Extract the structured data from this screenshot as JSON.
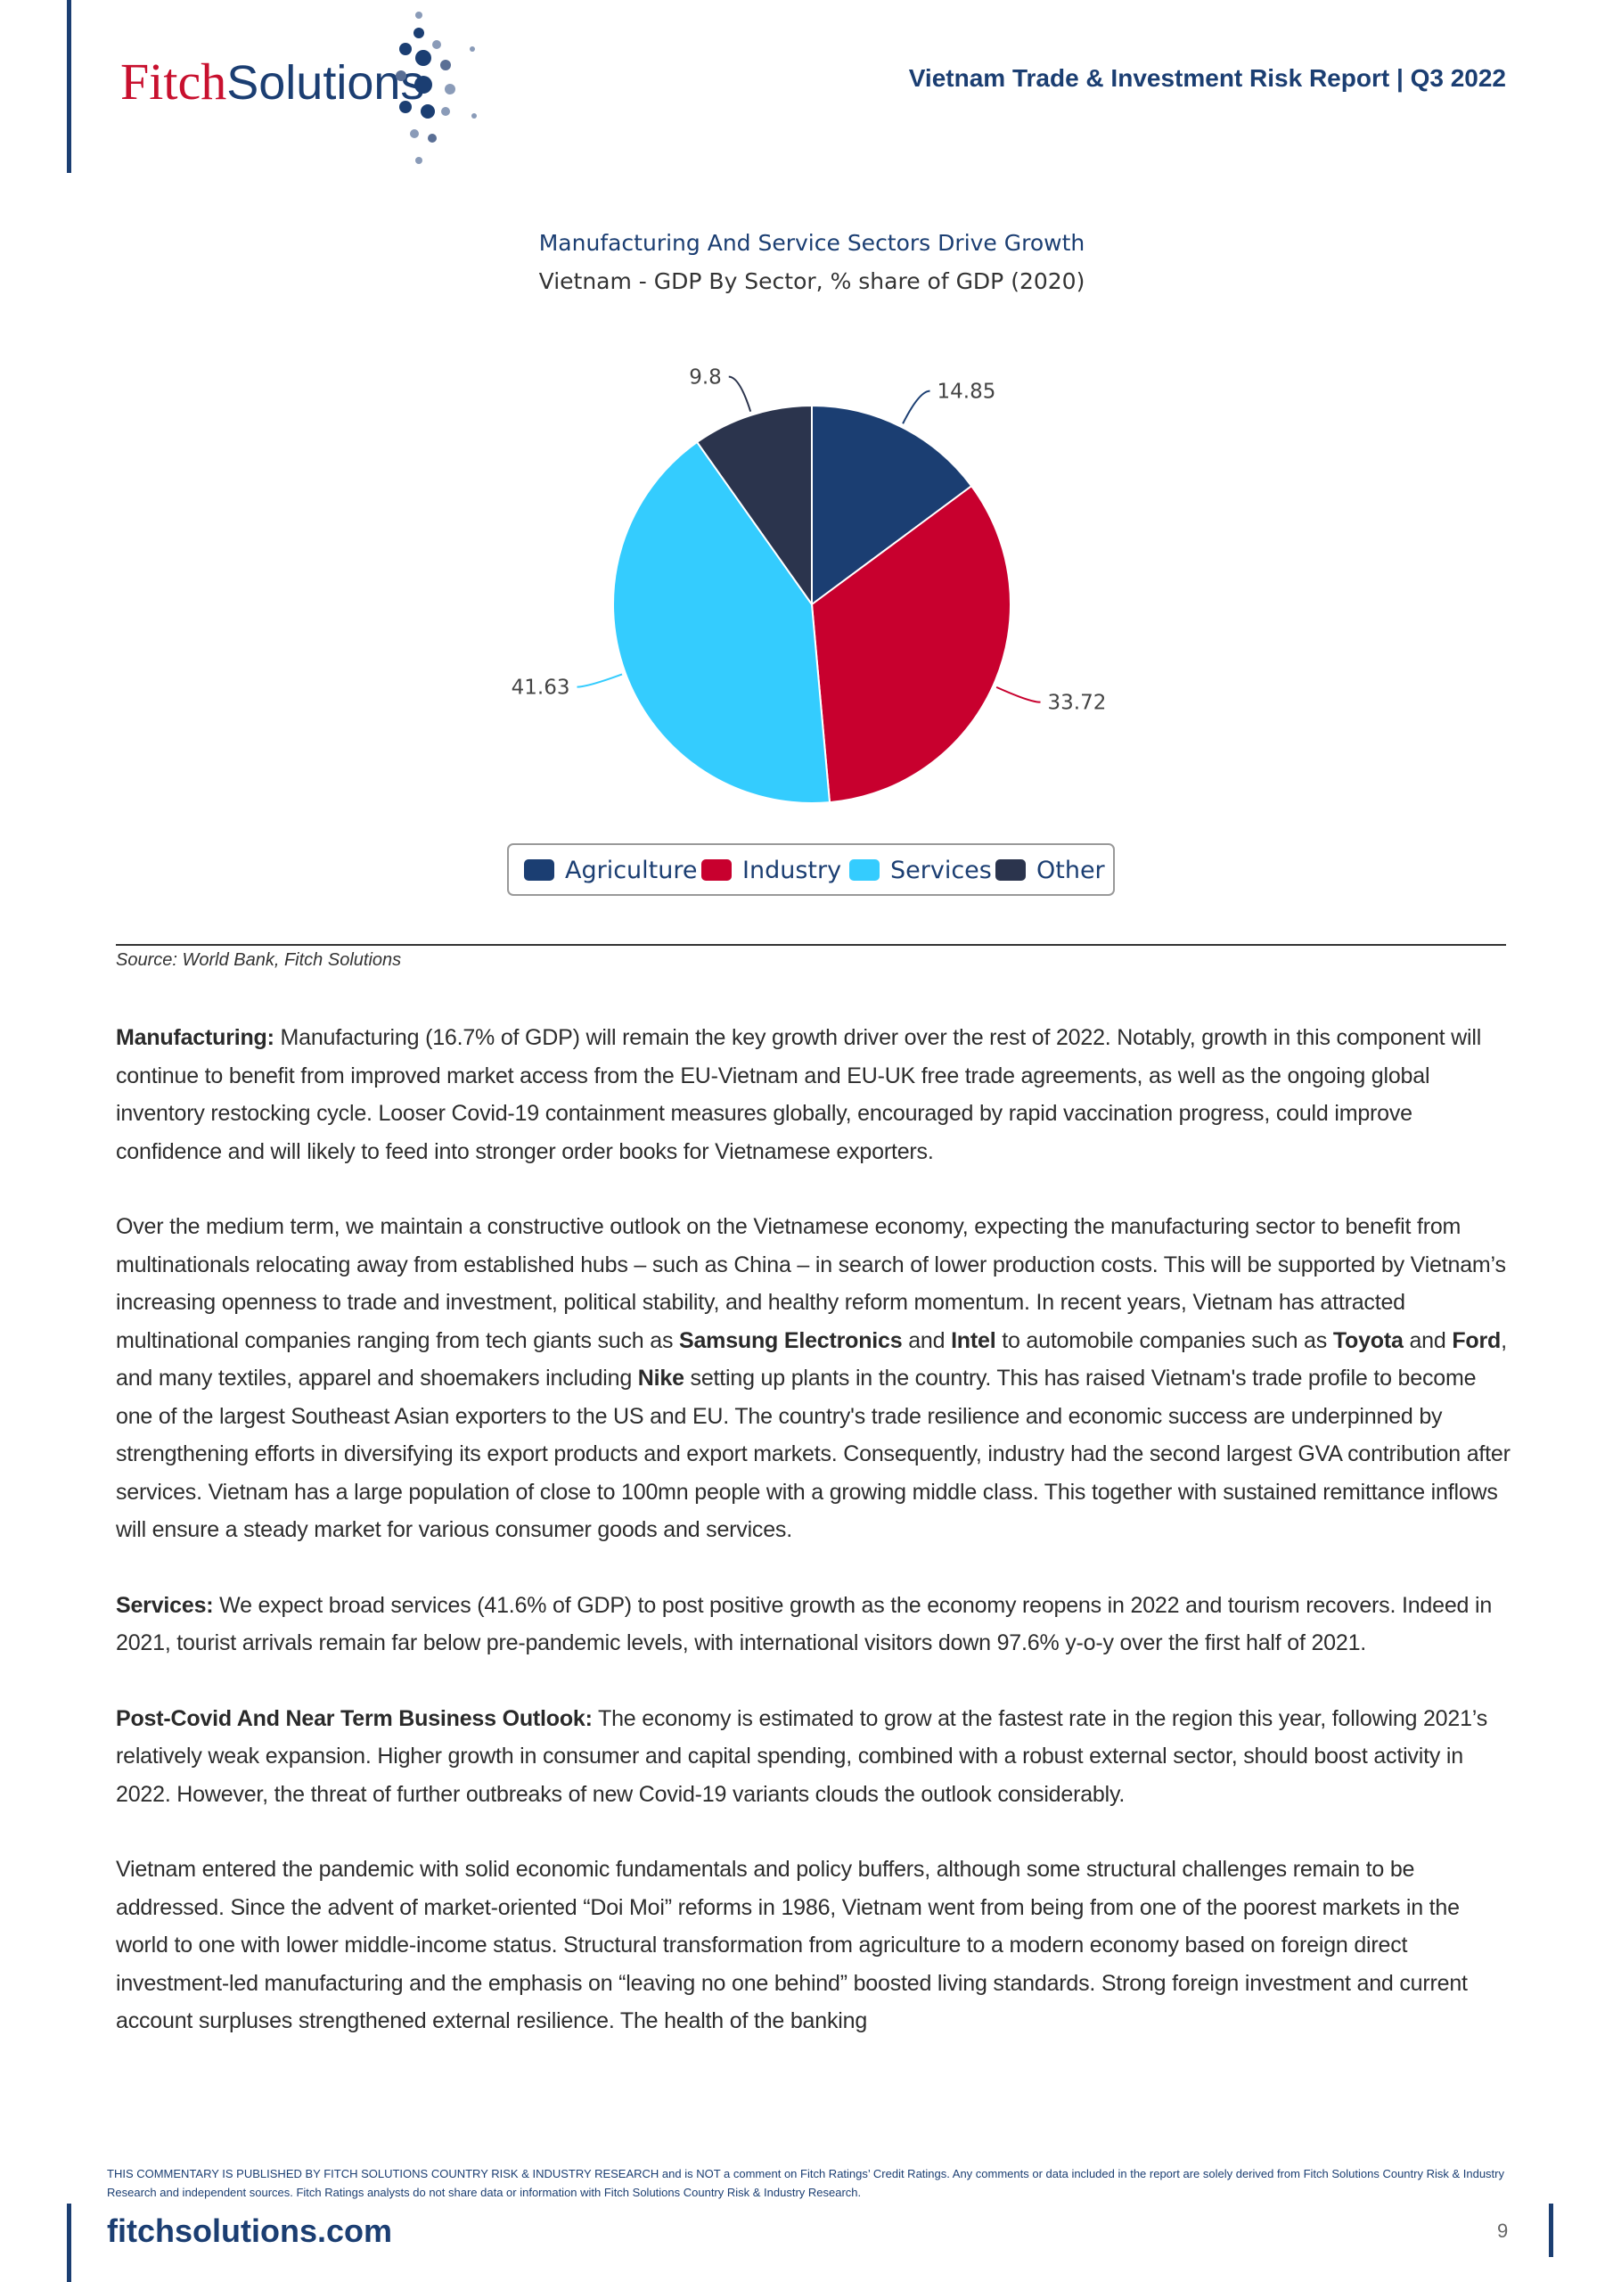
{
  "header": {
    "logo_left": "Fitch",
    "logo_right": "Solutions",
    "report_title": "Vietnam Trade & Investment Risk Report | Q3 2022"
  },
  "chart_data": {
    "type": "pie",
    "title": "Manufacturing And Service Sectors Drive Growth",
    "subtitle": "Vietnam - GDP By Sector, % share of GDP (2020)",
    "categories": [
      "Agriculture",
      "Industry",
      "Services",
      "Other"
    ],
    "values": [
      14.85,
      33.72,
      41.63,
      9.8
    ],
    "colors": [
      "#1b3e72",
      "#c8002e",
      "#34ccfe",
      "#2b344d"
    ],
    "legend": "bottom"
  },
  "source": "Source: World Bank, Fitch Solutions",
  "paragraphs": [
    [
      {
        "text": "Manufacturing:",
        "bold": true
      },
      {
        "text": " Manufacturing (16.7% of GDP) will remain the key growth driver over the rest of 2022. Notably, growth in this component will continue to benefit from improved market access from the EU-Vietnam and EU-UK free trade agreements, as well as the ongoing global inventory restocking cycle. Looser Covid-19 containment measures globally, encouraged by rapid vaccination progress, could improve confidence and will likely to feed into stronger order books for Vietnamese exporters.",
        "bold": false
      }
    ],
    [
      {
        "text": "Over the medium term, we maintain a constructive outlook on the Vietnamese economy, expecting the manufacturing sector to benefit from multinationals relocating away from established hubs – such as China – in search of lower production costs. This will be supported by Vietnam’s increasing openness to trade and investment, political stability, and healthy reform momentum. In recent years, Vietnam has attracted multinational companies ranging from tech giants such as ",
        "bold": false
      },
      {
        "text": "Samsung Electronics",
        "bold": true
      },
      {
        "text": " and ",
        "bold": false
      },
      {
        "text": "Intel",
        "bold": true
      },
      {
        "text": " to automobile companies such as ",
        "bold": false
      },
      {
        "text": "Toyota",
        "bold": true
      },
      {
        "text": " and ",
        "bold": false
      },
      {
        "text": "Ford",
        "bold": true
      },
      {
        "text": ", and many textiles, apparel and shoemakers including ",
        "bold": false
      },
      {
        "text": "Nike",
        "bold": true
      },
      {
        "text": " setting up plants in the country. This has raised Vietnam's trade profile to become one of the largest Southeast Asian exporters to the US and EU. The country's trade resilience and economic success are underpinned by strengthening efforts in diversifying its export products and export markets. Consequently, industry had the second largest GVA contribution after services. Vietnam has a large population of close to 100mn people with a growing middle class. This together with sustained remittance inflows will ensure a steady market for various consumer goods and services.",
        "bold": false
      }
    ],
    [
      {
        "text": "Services:",
        "bold": true
      },
      {
        "text": " We expect broad services (41.6% of GDP) to  post positive growth as the economy reopens in 2022 and tourism recovers. Indeed in 2021, tourist arrivals remain far below pre-pandemic levels, with international visitors down 97.6% y-o-y over the first half of 2021.",
        "bold": false
      }
    ],
    [
      {
        "text": "Post-Covid And Near Term Business Outlook:",
        "bold": true
      },
      {
        "text": " The economy is estimated to grow at the fastest rate in the region this year, following 2021’s relatively weak expansion. Higher growth in consumer and capital spending, combined with a robust external sector, should boost activity in 2022. However, the threat of further outbreaks of new Covid-19 variants clouds the outlook considerably.",
        "bold": false
      }
    ],
    [
      {
        "text": "Vietnam entered the pandemic with solid economic fundamentals and policy buffers, although some structural challenges remain to be addressed. Since the advent of market-oriented “Doi Moi” reforms in 1986, Vietnam went from being from one of the poorest markets in the world to one with lower middle-income status. Structural transformation from agriculture to a modern economy based on foreign direct investment-led manufacturing and the emphasis on “leaving no one behind” boosted living standards. Strong foreign investment and current account surpluses strengthened external resilience. The health of the banking",
        "bold": false
      }
    ]
  ],
  "footer": {
    "disclaimer": "THIS COMMENTARY IS PUBLISHED BY FITCH SOLUTIONS COUNTRY RISK & INDUSTRY RESEARCH and is NOT a comment on Fitch Ratings’ Credit Ratings. Any comments or data included in the report are solely derived from Fitch Solutions Country Risk & Industry Research and independent sources. Fitch Ratings analysts do not share data or information with Fitch Solutions Country Risk & Industry Research.",
    "site": "fitchsolutions.com",
    "page": "9"
  }
}
